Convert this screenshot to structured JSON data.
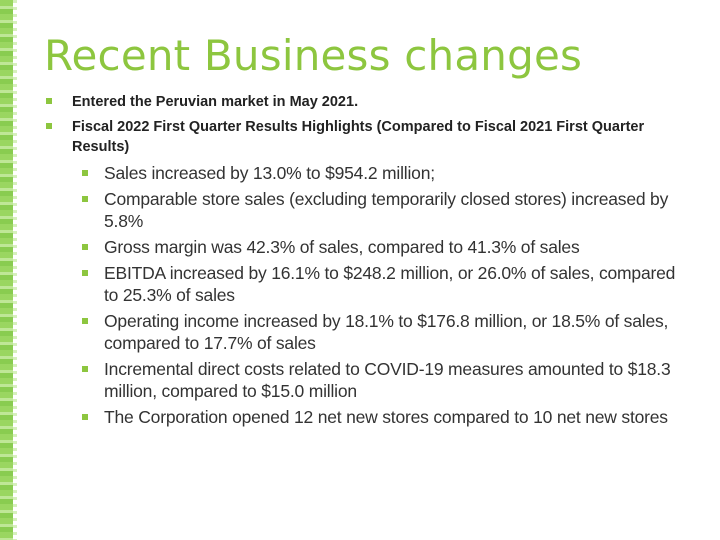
{
  "slide": {
    "title": "Recent Business changes",
    "bullets": [
      {
        "text": "Entered the Peruvian market in May 2021."
      },
      {
        "text": "Fiscal 2022 First Quarter Results Highlights (Compared to Fiscal 2021 First Quarter Results)",
        "sub": [
          "Sales increased by 13.0% to $954.2 million;",
          "Comparable store sales (excluding temporarily closed stores) increased by 5.8%",
          "Gross margin was 42.3% of sales, compared to 41.3% of sales",
          "EBITDA increased by 16.1% to $248.2 million, or 26.0% of sales, compared to 25.3% of sales",
          "Operating income increased by 18.1% to $176.8 million, or 18.5% of sales, compared to 17.7% of sales",
          "Incremental direct costs related to COVID-19 measures amounted to $18.3 million, compared to $15.0 million",
          "The Corporation opened 12 net new stores compared to 10 net new stores"
        ]
      }
    ]
  },
  "colors": {
    "accent": "#8dc63f",
    "text": "#333333"
  }
}
